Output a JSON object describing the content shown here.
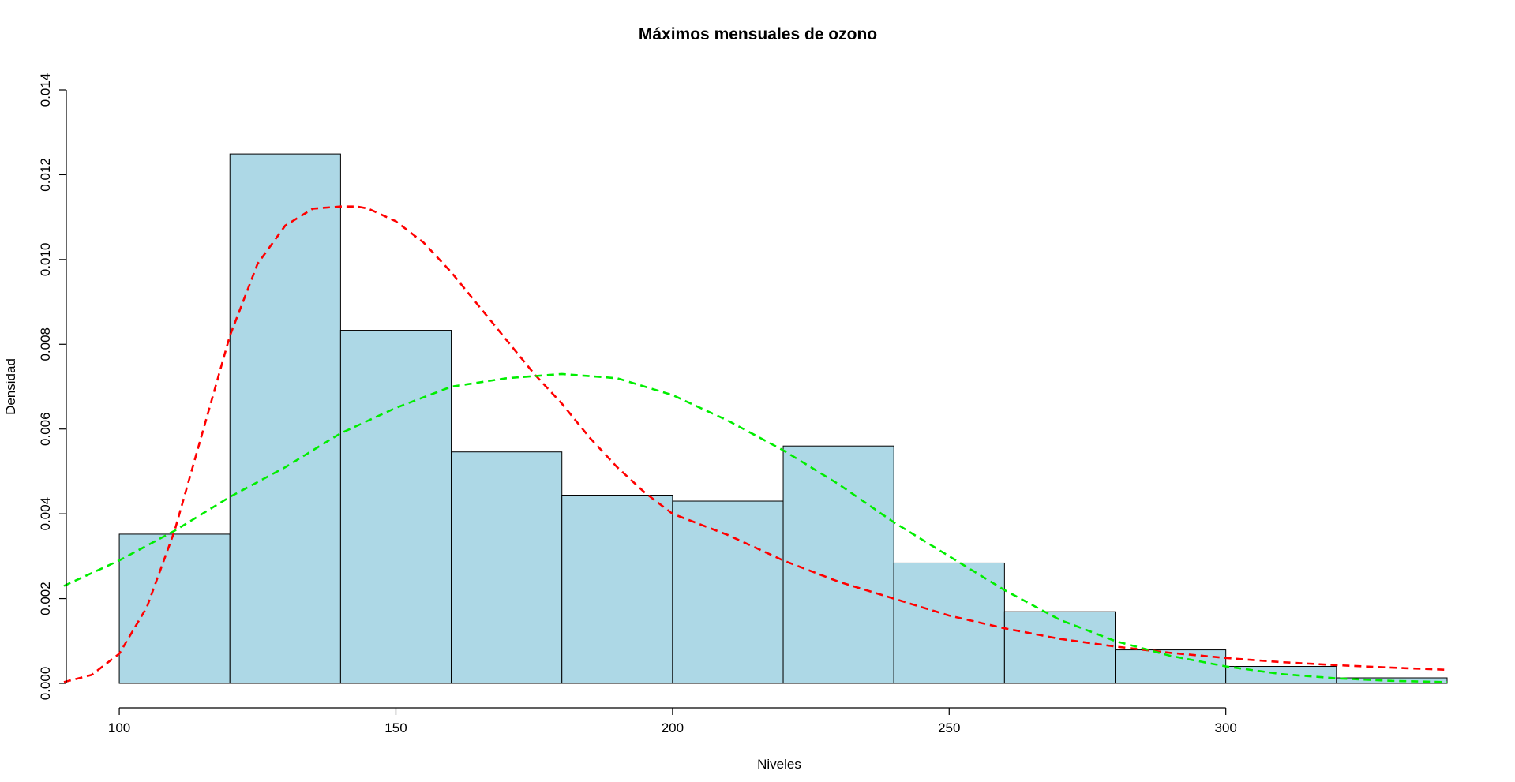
{
  "chart_data": {
    "type": "bar",
    "title": "Máximos mensuales de ozono",
    "xlabel": "Niveles",
    "ylabel": "Densidad",
    "xlim": [
      90,
      340
    ],
    "ylim": [
      0,
      0.014
    ],
    "x_ticks": [
      100,
      150,
      200,
      250,
      300
    ],
    "x_tick_labels": [
      "100",
      "150",
      "200",
      "250",
      "300"
    ],
    "y_ticks": [
      0,
      0.002,
      0.004,
      0.006,
      0.008,
      0.01,
      0.012,
      0.014
    ],
    "y_tick_labels": [
      "0.000",
      "0.002",
      "0.004",
      "0.006",
      "0.008",
      "0.010",
      "0.012",
      "0.014"
    ],
    "bins": [
      {
        "start": 100,
        "end": 120,
        "density": 0.00352
      },
      {
        "start": 120,
        "end": 140,
        "density": 0.01249
      },
      {
        "start": 140,
        "end": 160,
        "density": 0.00833
      },
      {
        "start": 160,
        "end": 180,
        "density": 0.00546
      },
      {
        "start": 180,
        "end": 200,
        "density": 0.00444
      },
      {
        "start": 200,
        "end": 220,
        "density": 0.0043
      },
      {
        "start": 220,
        "end": 240,
        "density": 0.0056
      },
      {
        "start": 240,
        "end": 260,
        "density": 0.00284
      },
      {
        "start": 260,
        "end": 280,
        "density": 0.00169
      },
      {
        "start": 280,
        "end": 300,
        "density": 0.00079
      },
      {
        "start": 300,
        "end": 320,
        "density": 0.0004
      },
      {
        "start": 320,
        "end": 340,
        "density": 0.00013
      }
    ],
    "bar_color": "#ADD8E6",
    "series": [
      {
        "color": "#FF0000",
        "x": [
          90,
          95,
          100,
          105,
          110,
          115,
          120,
          125,
          130,
          135,
          140,
          143,
          145,
          150,
          155,
          160,
          165,
          170,
          175,
          180,
          185,
          190,
          195,
          200,
          210,
          220,
          230,
          240,
          250,
          260,
          270,
          280,
          290,
          300,
          310,
          320,
          330,
          340
        ],
        "y": [
          3e-05,
          0.0002,
          0.0007,
          0.0018,
          0.0036,
          0.0059,
          0.0082,
          0.0099,
          0.0108,
          0.0112,
          0.01125,
          0.01125,
          0.0112,
          0.0109,
          0.0104,
          0.0097,
          0.0089,
          0.0081,
          0.0073,
          0.0066,
          0.0058,
          0.0051,
          0.0045,
          0.004,
          0.0035,
          0.0029,
          0.0024,
          0.002,
          0.0016,
          0.0013,
          0.00105,
          0.00087,
          0.00072,
          0.0006,
          0.0005,
          0.00043,
          0.00037,
          0.00032
        ]
      },
      {
        "color": "#00EE00",
        "x": [
          90,
          100,
          110,
          120,
          130,
          140,
          150,
          160,
          170,
          180,
          190,
          200,
          210,
          220,
          230,
          240,
          250,
          260,
          270,
          280,
          290,
          300,
          310,
          320,
          330,
          340
        ],
        "y": [
          0.0023,
          0.0029,
          0.0036,
          0.0044,
          0.0051,
          0.0059,
          0.0065,
          0.007,
          0.0072,
          0.0073,
          0.0072,
          0.0068,
          0.0062,
          0.0055,
          0.0047,
          0.0038,
          0.003,
          0.0022,
          0.0015,
          0.001,
          0.00065,
          0.0004,
          0.00022,
          0.00012,
          6e-05,
          3e-05
        ]
      }
    ]
  }
}
